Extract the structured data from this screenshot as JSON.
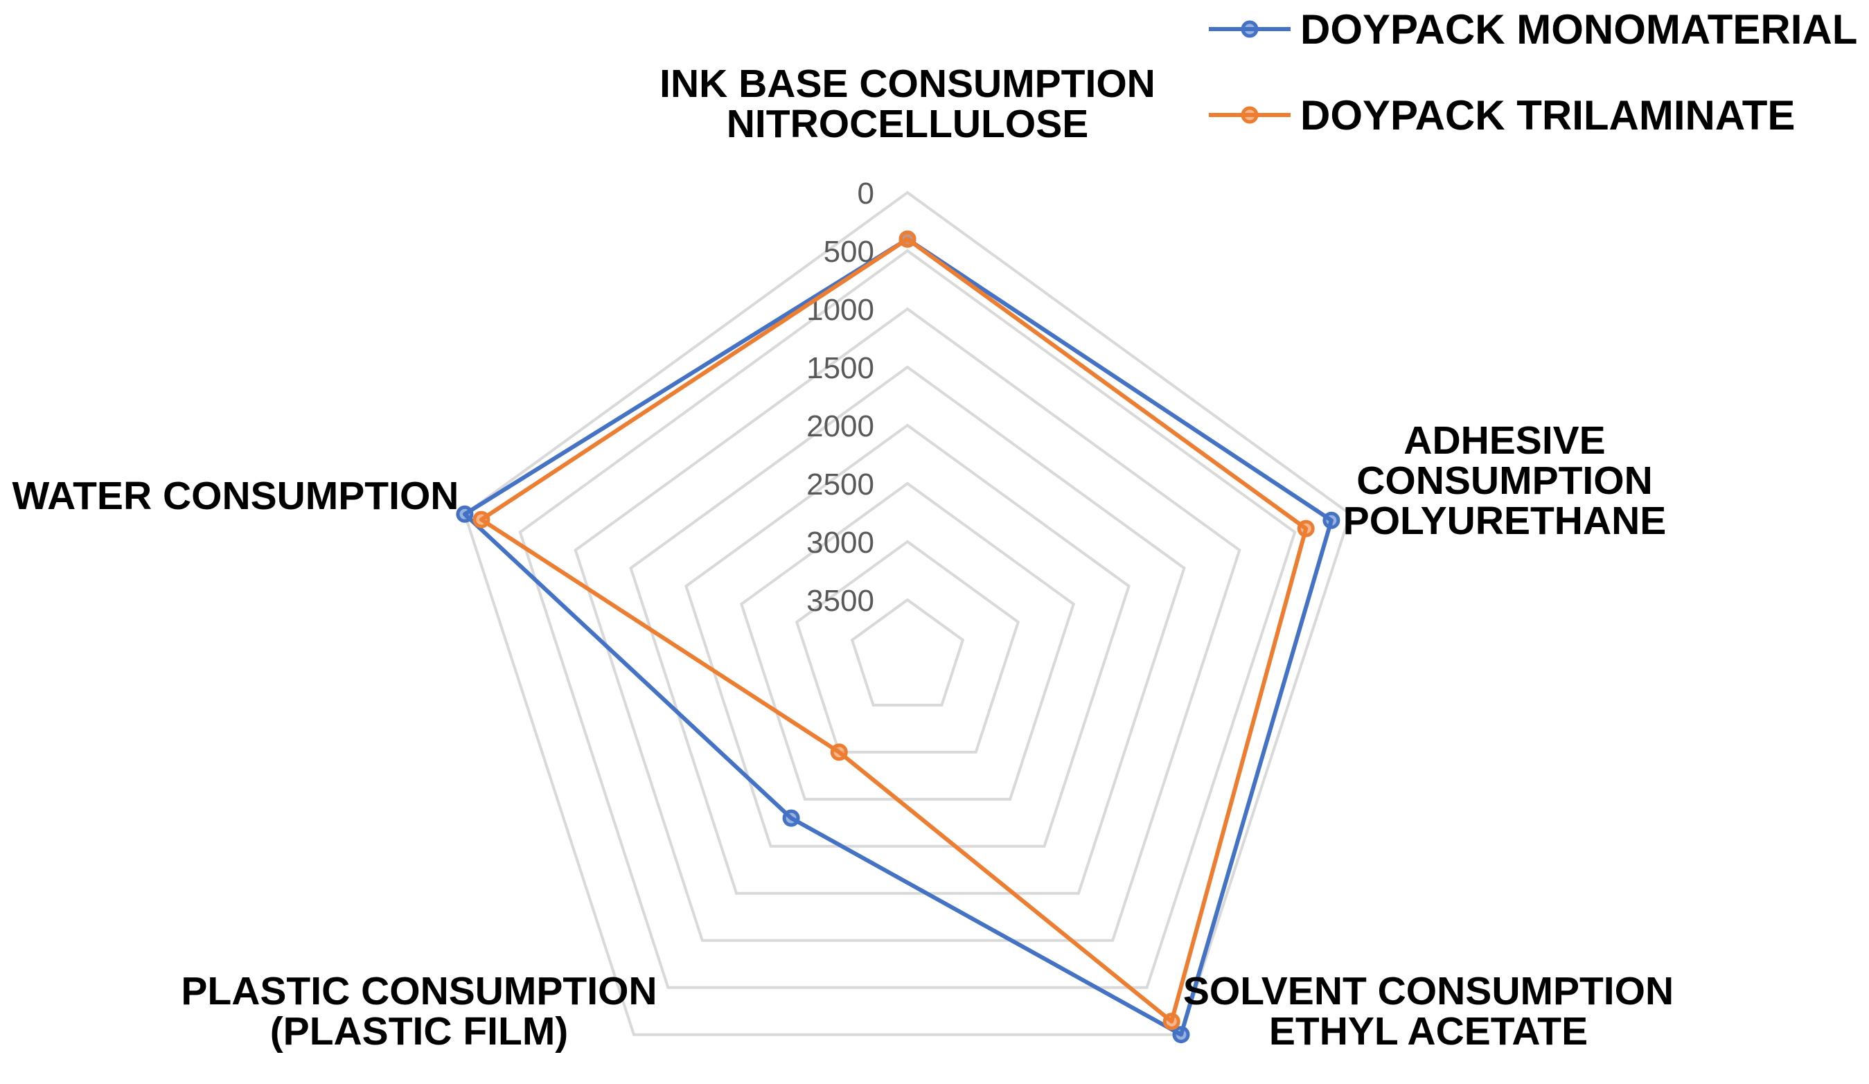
{
  "chart_data": {
    "type": "radar",
    "axes": [
      {
        "label_lines": [
          "INK BASE CONSUMPTION",
          "NITROCELLULOSE"
        ]
      },
      {
        "label_lines": [
          "ADHESIVE",
          "CONSUMPTION",
          "POLYURETHANE"
        ]
      },
      {
        "label_lines": [
          "SOLVENT CONSUMPTION",
          "ETHYL ACETATE"
        ]
      },
      {
        "label_lines": [
          "PLASTIC CONSUMPTION",
          "(PLASTIC FILM)"
        ]
      },
      {
        "label_lines": [
          "WATER CONSUMPTION"
        ]
      }
    ],
    "ticks": [
      "0",
      "500",
      "1000",
      "1500",
      "2000",
      "2500",
      "3000",
      "3500"
    ],
    "rlim": [
      0,
      4000
    ],
    "reversed": true,
    "series": [
      {
        "name": "DOYPACK MONOMATERIAL",
        "color": "#4472C4",
        "values": [
          400,
          170,
          0,
          2300,
          0
        ]
      },
      {
        "name": "DOYPACK TRILAMINATE",
        "color": "#ED7D31",
        "values": [
          400,
          400,
          140,
          3000,
          150
        ]
      }
    ],
    "grid": true,
    "legend_position": "top-right"
  }
}
